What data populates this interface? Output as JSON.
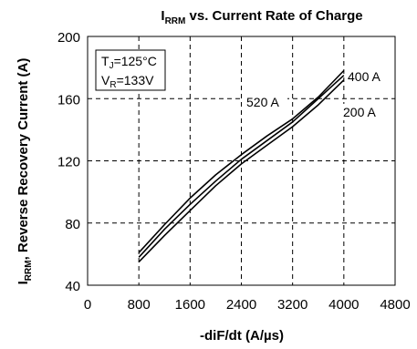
{
  "chart_data": {
    "type": "line",
    "title": {
      "prefix": "I",
      "sub": "RRM",
      "suffix": " vs. Current Rate of Charge"
    },
    "xlabel": "-diF/dt  (A/µs)",
    "ylabel": {
      "prefix": "I",
      "sub": "RRM",
      "suffix": ", Reverse Recovery Current (A)"
    },
    "xlim": [
      0,
      4800
    ],
    "ylim": [
      40,
      200
    ],
    "xticks": [
      "0",
      "800",
      "1600",
      "2400",
      "3200",
      "4000",
      "4800"
    ],
    "yticks": [
      "40",
      "80",
      "120",
      "160",
      "200"
    ],
    "grid": true,
    "conditions": [
      {
        "prefix": "T",
        "sub": "J",
        "suffix": "=125°C"
      },
      {
        "prefix": "V",
        "sub": "R",
        "suffix": "=133V"
      }
    ],
    "series": [
      {
        "name": "400 A",
        "x": [
          800,
          1200,
          1600,
          2000,
          2400,
          2800,
          3200,
          3600,
          4000
        ],
        "y": [
          61,
          79,
          96,
          111,
          124,
          136,
          147,
          161,
          178
        ]
      },
      {
        "name": "520 A",
        "x": [
          800,
          1200,
          1600,
          2000,
          2400,
          2800,
          3200,
          3600,
          4000
        ],
        "y": [
          58,
          76,
          92,
          107,
          121,
          133,
          145,
          160,
          175
        ]
      },
      {
        "name": "200 A",
        "x": [
          800,
          1200,
          1600,
          2000,
          2400,
          2800,
          3200,
          3600,
          4000
        ],
        "y": [
          55,
          72,
          88,
          104,
          118,
          130,
          142,
          156,
          172
        ]
      }
    ]
  }
}
